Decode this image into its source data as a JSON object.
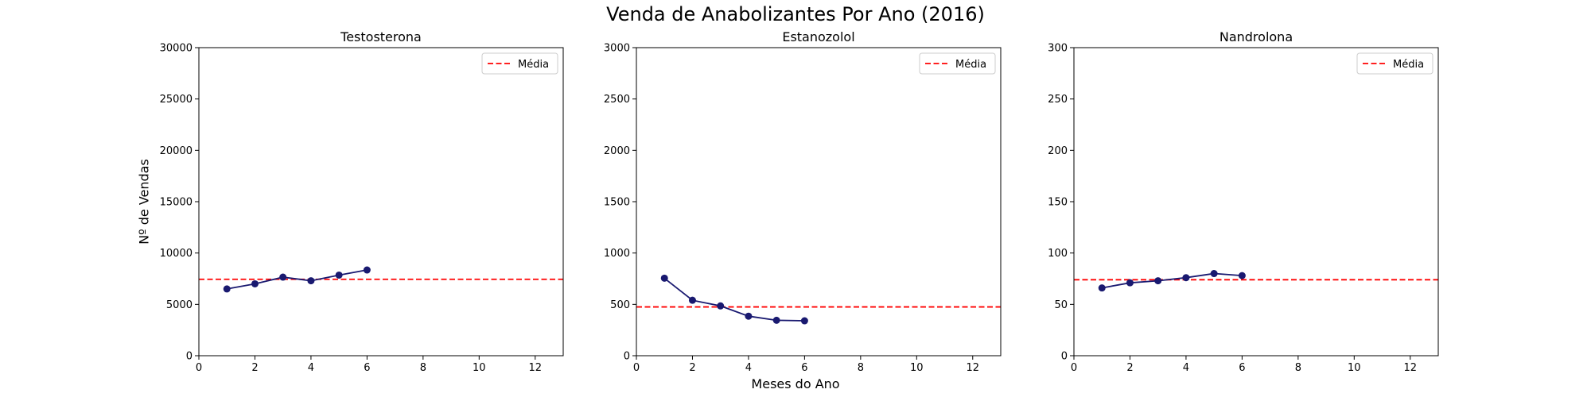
{
  "figure": {
    "title": "Venda de Anabolizantes Por Ano (2016)",
    "xlabel": "Meses do Ano",
    "ylabel": "Nº de Vendas"
  },
  "colors": {
    "line": "#191970",
    "mean": "#ff0000",
    "axis": "#000000"
  },
  "chart_data": [
    {
      "type": "line",
      "title": "Testosterona",
      "x": [
        1,
        2,
        3,
        4,
        5,
        6
      ],
      "values": [
        6500,
        7000,
        7650,
        7300,
        7850,
        8350
      ],
      "mean": 7442,
      "xlim": [
        0,
        13
      ],
      "ylim": [
        0,
        30000
      ],
      "xticks": [
        0,
        2,
        4,
        6,
        8,
        10,
        12
      ],
      "yticks": [
        0,
        5000,
        10000,
        15000,
        20000,
        25000,
        30000
      ],
      "legend": {
        "label": "Média",
        "position": "top-right"
      },
      "grid": false
    },
    {
      "type": "line",
      "title": "Estanozolol",
      "x": [
        1,
        2,
        3,
        4,
        5,
        6
      ],
      "values": [
        755,
        540,
        485,
        385,
        345,
        340
      ],
      "mean": 475,
      "xlim": [
        0,
        13
      ],
      "ylim": [
        0,
        3000
      ],
      "xticks": [
        0,
        2,
        4,
        6,
        8,
        10,
        12
      ],
      "yticks": [
        0,
        500,
        1000,
        1500,
        2000,
        2500,
        3000
      ],
      "legend": {
        "label": "Média",
        "position": "top-right"
      },
      "grid": false
    },
    {
      "type": "line",
      "title": "Nandrolona",
      "x": [
        1,
        2,
        3,
        4,
        5,
        6
      ],
      "values": [
        66,
        71,
        73,
        76,
        80,
        78
      ],
      "mean": 74,
      "xlim": [
        0,
        13
      ],
      "ylim": [
        0,
        300
      ],
      "xticks": [
        0,
        2,
        4,
        6,
        8,
        10,
        12
      ],
      "yticks": [
        0,
        50,
        100,
        150,
        200,
        250,
        300
      ],
      "legend": {
        "label": "Média",
        "position": "top-right"
      },
      "grid": false
    }
  ]
}
